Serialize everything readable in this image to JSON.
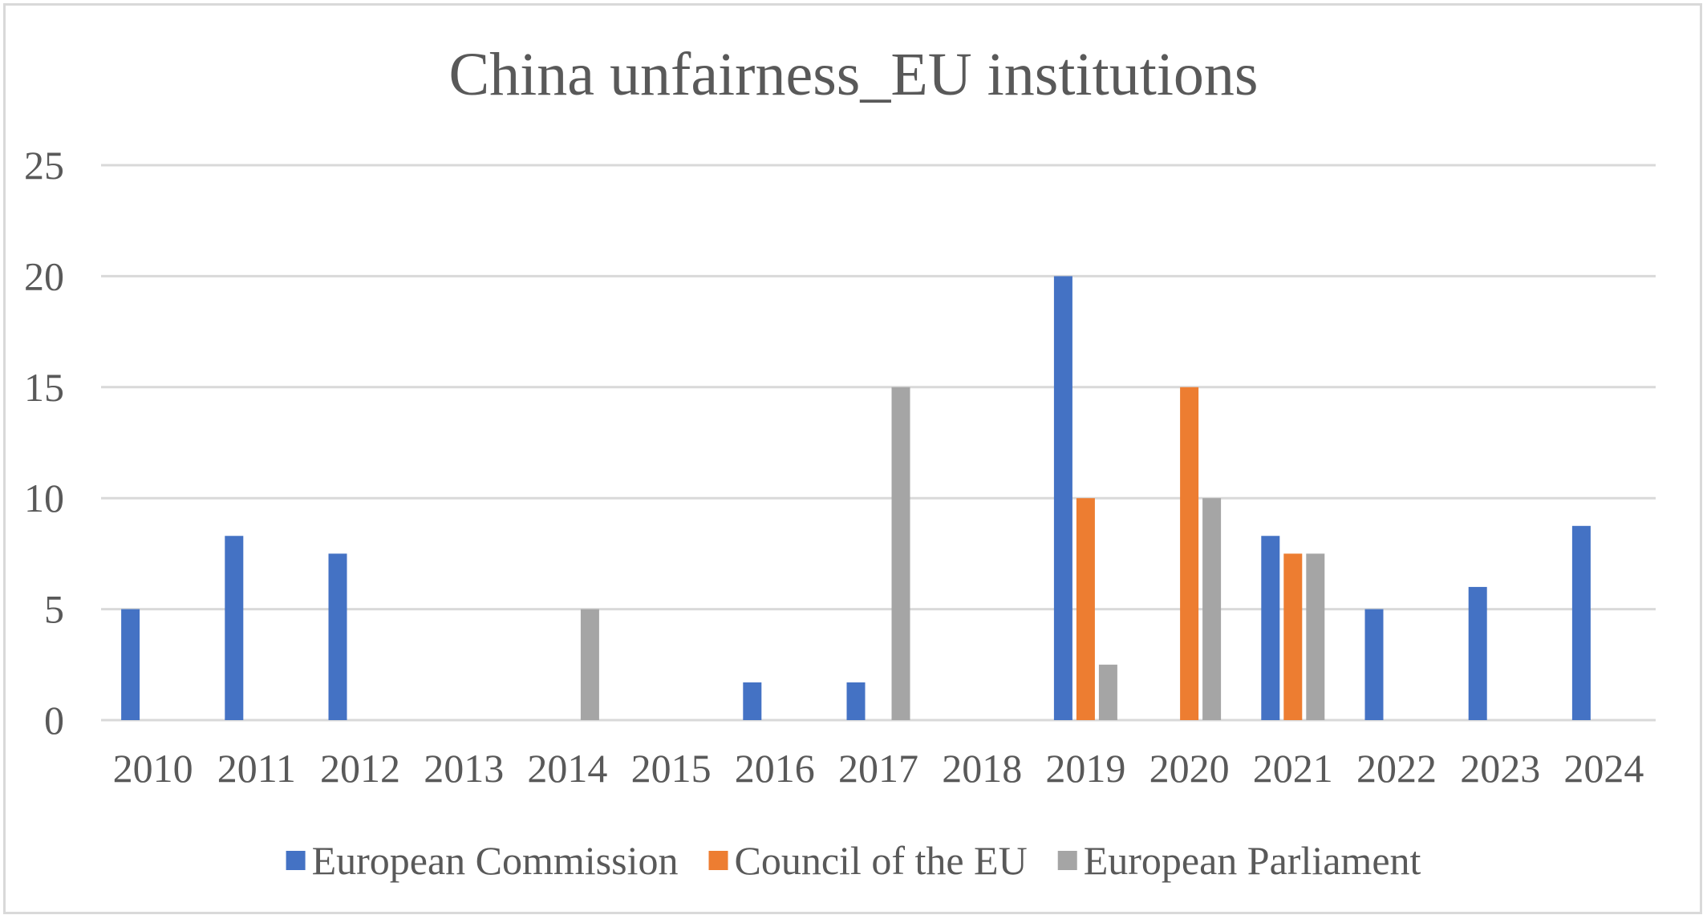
{
  "chart_data": {
    "type": "bar",
    "title": "China unfairness_EU institutions",
    "xlabel": "",
    "ylabel": "",
    "categories": [
      "2010",
      "2011",
      "2012",
      "2013",
      "2014",
      "2015",
      "2016",
      "2017",
      "2018",
      "2019",
      "2020",
      "2021",
      "2022",
      "2023",
      "2024"
    ],
    "series": [
      {
        "name": "European Commission",
        "color": "#4472c4",
        "values": [
          5,
          8.3,
          7.5,
          0,
          0,
          0,
          1.7,
          1.7,
          0,
          20,
          0,
          8.3,
          5,
          6,
          8.75
        ]
      },
      {
        "name": "Council of the EU",
        "color": "#ed7d31",
        "values": [
          0,
          0,
          0,
          0,
          0,
          0,
          0,
          0,
          0,
          10,
          15,
          7.5,
          0,
          0,
          0
        ]
      },
      {
        "name": "European Parliament",
        "color": "#a5a5a5",
        "values": [
          0,
          0,
          0,
          0,
          5,
          0,
          0,
          15,
          0,
          2.5,
          10,
          7.5,
          0,
          0,
          0
        ]
      }
    ],
    "ylim": [
      0,
      25
    ],
    "yticks": [
      0,
      5,
      10,
      15,
      20,
      25
    ],
    "grid": true,
    "legend_position": "bottom"
  }
}
